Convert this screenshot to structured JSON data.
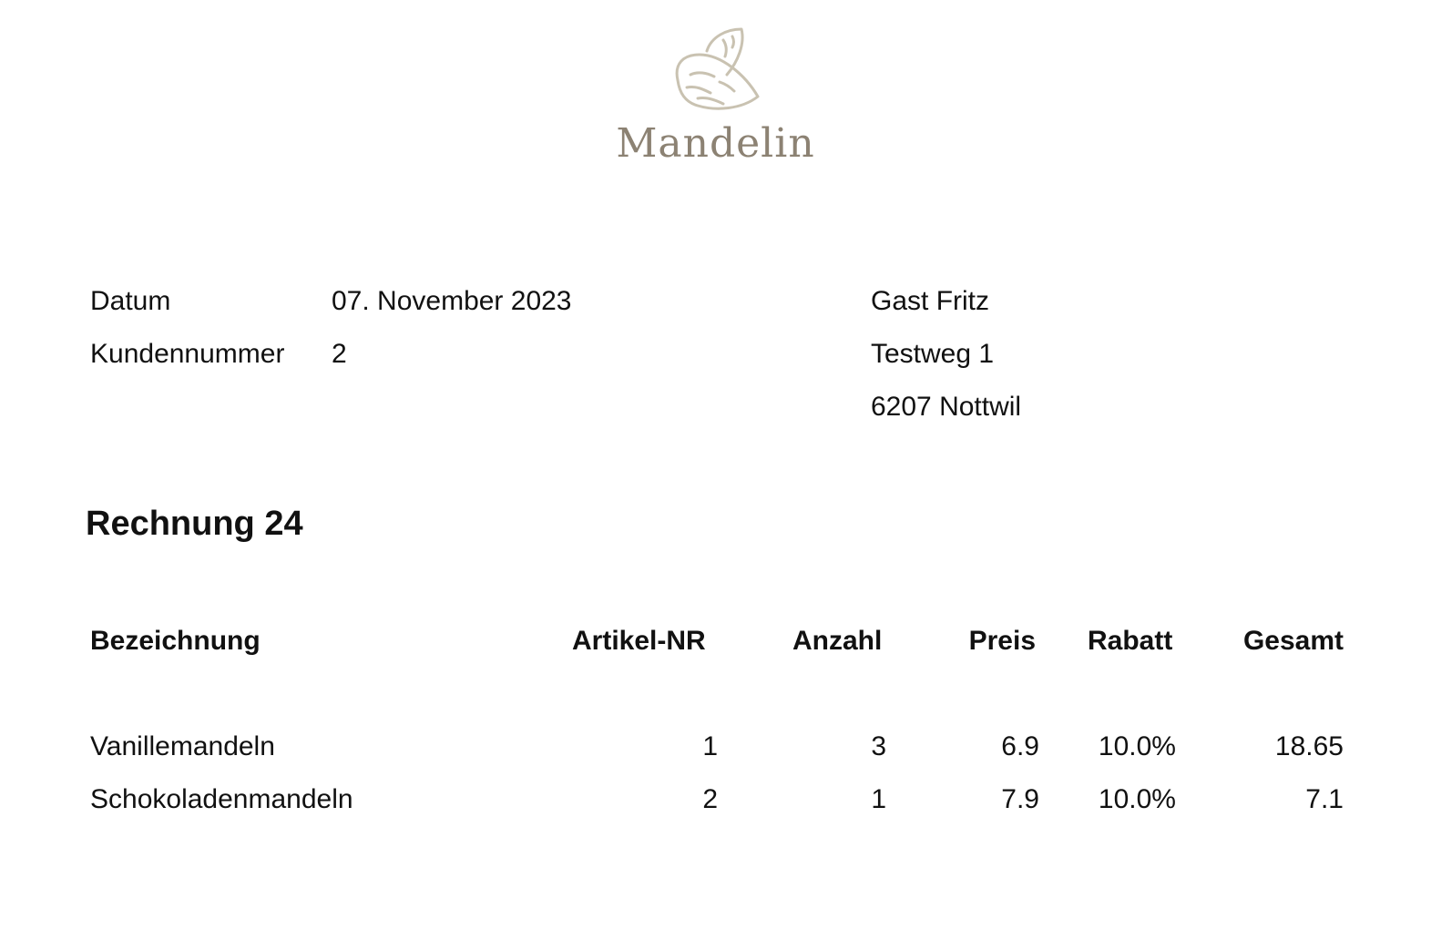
{
  "brand": {
    "name": "Mandelin",
    "logo_icon": "almond-icon",
    "logo_color": "#c9c2b1",
    "text_color": "#8c8273"
  },
  "meta": {
    "date_label": "Datum",
    "date_value": "07. November 2023",
    "customer_label": "Kundennummer",
    "customer_value": "2"
  },
  "recipient": {
    "name": "Gast Fritz",
    "street": "Testweg 1",
    "city": "6207 Nottwil"
  },
  "invoice": {
    "title": "Rechnung 24"
  },
  "table": {
    "headers": [
      "Bezeichnung",
      "Artikel-NR",
      "Anzahl",
      "Preis",
      "Rabatt",
      "Gesamt"
    ],
    "rows": [
      [
        "Vanillemandeln",
        "1",
        "3",
        "6.9",
        "10.0%",
        "18.65"
      ],
      [
        "Schokoladenmandeln",
        "2",
        "1",
        "7.9",
        "10.0%",
        "7.1"
      ]
    ]
  }
}
